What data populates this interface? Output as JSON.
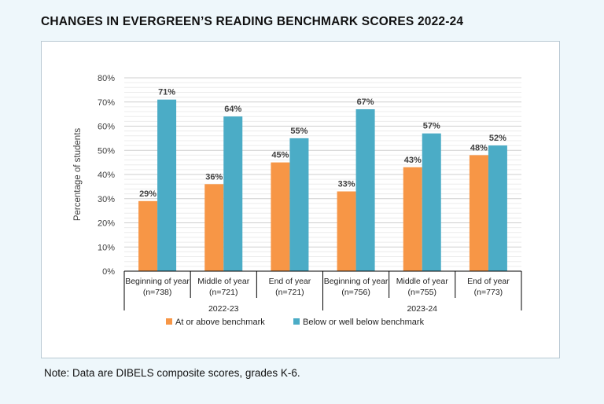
{
  "header": {
    "title": "CHANGES IN EVERGREEN’S READING BENCHMARK SCORES 2022-24"
  },
  "footer": {
    "note": "Note: Data are DIBELS composite scores, grades K-6."
  },
  "colors": {
    "series_1": "#f79646",
    "series_2": "#4bacc6",
    "grid": "#d9d9d9",
    "text": "#404040"
  },
  "chart_data": {
    "type": "bar",
    "title": "",
    "xlabel": "",
    "ylabel": "Percentage of students",
    "ylim": [
      0,
      80
    ],
    "yticks": [
      "0%",
      "10%",
      "20%",
      "30%",
      "40%",
      "50%",
      "60%",
      "70%",
      "80%"
    ],
    "grid": true,
    "legend": "bottom",
    "categories": [
      {
        "label": "Beginning of year",
        "n": "(n=738)"
      },
      {
        "label": "Middle of year",
        "n": "(n=721)"
      },
      {
        "label": "End of year",
        "n": "(n=721)"
      },
      {
        "label": "Beginning of year",
        "n": "(n=756)"
      },
      {
        "label": "Middle of year",
        "n": "(n=755)"
      },
      {
        "label": "End of year",
        "n": "(n=773)"
      }
    ],
    "groups": [
      "2022-23",
      "2023-24"
    ],
    "series": [
      {
        "name": "At or above benchmark",
        "values": [
          29,
          36,
          45,
          33,
          43,
          48
        ],
        "labels": [
          "29%",
          "36%",
          "45%",
          "33%",
          "43%",
          "48%"
        ]
      },
      {
        "name": "Below or well below benchmark",
        "values": [
          71,
          64,
          55,
          67,
          57,
          52
        ],
        "labels": [
          "71%",
          "64%",
          "55%",
          "67%",
          "57%",
          "52%"
        ]
      }
    ]
  }
}
